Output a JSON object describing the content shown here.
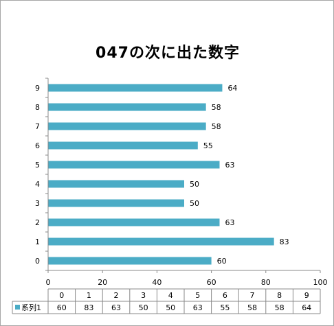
{
  "chart_data": {
    "type": "bar",
    "orientation": "horizontal",
    "title": "047の次に出た数字",
    "categories": [
      "0",
      "1",
      "2",
      "3",
      "4",
      "5",
      "6",
      "7",
      "8",
      "9"
    ],
    "series": [
      {
        "name": "系列1",
        "values": [
          60,
          83,
          63,
          50,
          50,
          63,
          55,
          58,
          58,
          64
        ],
        "color": "#4bacc6"
      }
    ],
    "xticks": [
      "0",
      "20",
      "40",
      "60",
      "80",
      "100"
    ],
    "xlim": [
      0,
      100
    ],
    "grid": false,
    "data_labels": true,
    "data_table": true
  }
}
